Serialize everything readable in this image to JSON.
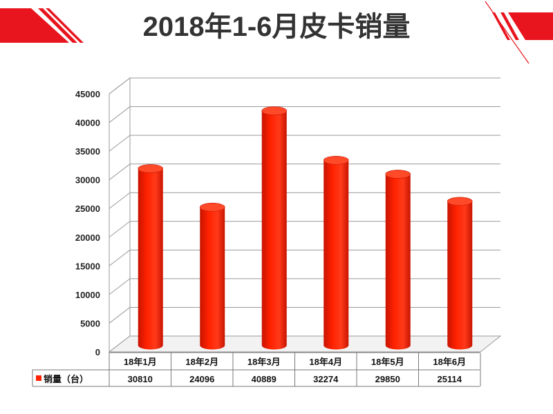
{
  "title": "2018年1-6月皮卡销量",
  "colors": {
    "bar": "#ff2200",
    "bar_dark": "#c81400",
    "accent": "#e8141e",
    "grid": "#999999"
  },
  "chart_data": {
    "type": "bar",
    "categories": [
      "18年1月",
      "18年2月",
      "18年3月",
      "18年4月",
      "18年5月",
      "18年6月"
    ],
    "series": [
      {
        "name": "销量（台）",
        "values": [
          30810,
          24096,
          40889,
          32274,
          29850,
          25114
        ]
      }
    ],
    "ylim": [
      0,
      45000
    ],
    "yticks": [
      0,
      5000,
      10000,
      15000,
      20000,
      25000,
      30000,
      35000,
      40000,
      45000
    ],
    "grid": true,
    "data_table": true
  }
}
